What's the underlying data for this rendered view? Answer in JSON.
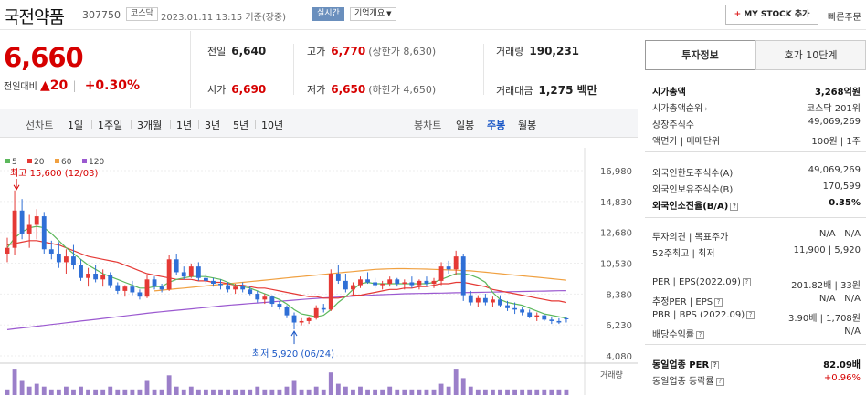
{
  "header": {
    "name": "국전약품",
    "code": "307750",
    "market": "코스닥",
    "datetime": "2023.01.11 13:15 기준(장중)",
    "realtime": "실시간",
    "corp_overview": "기업개요",
    "corp_overview_icon": "chevron-down-icon",
    "mystock_plus": "+",
    "mystock_label": "MY STOCK 추가",
    "quick_order": "빠른주문"
  },
  "price": {
    "current": "6,660",
    "diff_label": "전일대비",
    "diff_arrow": "▲",
    "diff_value": "20",
    "sep": "|",
    "diff_pct": "+0.30%",
    "color_up": "#d60000"
  },
  "stats": {
    "prev_close": {
      "label": "전일",
      "value": "6,640"
    },
    "open": {
      "label": "시가",
      "value": "6,690"
    },
    "high": {
      "label": "고가",
      "value": "6,770",
      "sub": "(상한가 8,630)"
    },
    "low": {
      "label": "저가",
      "value": "6,650",
      "sub": "(하한가 4,650)"
    },
    "volume": {
      "label": "거래량",
      "value": "190,231"
    },
    "amount": {
      "label": "거래대금",
      "value": "1,275 백만"
    }
  },
  "toolbar": {
    "line_chart": "선차트",
    "line_periods": [
      "1일",
      "1주일",
      "3개월",
      "1년",
      "3년",
      "5년",
      "10년"
    ],
    "candle_chart": "봉차트",
    "candle_periods": [
      "일봉",
      "주봉",
      "월봉"
    ],
    "active_candle": "주봉"
  },
  "chart_data": {
    "type": "candlestick",
    "legend": [
      {
        "name": "5",
        "color": "#5cb85c"
      },
      {
        "name": "20",
        "color": "#e53935"
      },
      {
        "name": "60",
        "color": "#f0a040"
      },
      {
        "name": "120",
        "color": "#9b59d0"
      }
    ],
    "yticks": [
      16980,
      14830,
      12680,
      10530,
      8380,
      6230,
      4080
    ],
    "ylim": [
      3700,
      17300
    ],
    "annotation_high": "최고 15,600 (12/03)",
    "annotation_low": "최저 5,920 (06/24)",
    "volume_label": "거래량",
    "color_up": "#e53935",
    "color_down": "#2f6fd6",
    "candles": [
      [
        11200,
        12300,
        10600,
        11600
      ],
      [
        11600,
        15600,
        11100,
        14200
      ],
      [
        14200,
        15000,
        12200,
        12600
      ],
      [
        12600,
        13900,
        11600,
        13200
      ],
      [
        13200,
        14300,
        12200,
        13800
      ],
      [
        13800,
        14100,
        11200,
        11500
      ],
      [
        11500,
        12100,
        10800,
        11200
      ],
      [
        11200,
        12000,
        10200,
        10600
      ],
      [
        10600,
        11500,
        9800,
        11000
      ],
      [
        11000,
        11800,
        10100,
        10400
      ],
      [
        10400,
        10800,
        9300,
        9500
      ],
      [
        9500,
        10200,
        8900,
        9800
      ],
      [
        9800,
        10400,
        9200,
        9400
      ],
      [
        9400,
        10100,
        8900,
        9700
      ],
      [
        9700,
        9900,
        8800,
        9000
      ],
      [
        9000,
        9200,
        8400,
        8600
      ],
      [
        8600,
        9000,
        8200,
        8900
      ],
      [
        8900,
        9300,
        8300,
        8500
      ],
      [
        8500,
        8700,
        8000,
        8200
      ],
      [
        8200,
        9700,
        8100,
        9400
      ],
      [
        9400,
        9600,
        8700,
        8900
      ],
      [
        8900,
        9100,
        8500,
        8700
      ],
      [
        8700,
        11100,
        8600,
        10800
      ],
      [
        10800,
        11200,
        9700,
        9900
      ],
      [
        9900,
        10300,
        9400,
        9600
      ],
      [
        9600,
        10500,
        9500,
        10300
      ],
      [
        10300,
        10600,
        9300,
        9500
      ],
      [
        9500,
        9800,
        9100,
        9300
      ],
      [
        9300,
        9500,
        8900,
        9100
      ],
      [
        9100,
        9400,
        8700,
        9000
      ],
      [
        9000,
        9200,
        8500,
        8700
      ],
      [
        8700,
        9100,
        8400,
        8900
      ],
      [
        8900,
        9200,
        8500,
        8700
      ],
      [
        8700,
        8900,
        8300,
        8400
      ],
      [
        8400,
        8600,
        7800,
        8000
      ],
      [
        8000,
        8400,
        7700,
        8200
      ],
      [
        8200,
        8300,
        7500,
        7700
      ],
      [
        7700,
        7900,
        7300,
        7500
      ],
      [
        7500,
        7600,
        6700,
        6900
      ],
      [
        6900,
        7100,
        5920,
        6400
      ],
      [
        6400,
        6700,
        6200,
        6500
      ],
      [
        6500,
        6800,
        6300,
        6700
      ],
      [
        6700,
        7600,
        6600,
        7400
      ],
      [
        7400,
        7700,
        7100,
        7300
      ],
      [
        7300,
        10100,
        7200,
        9800
      ],
      [
        9800,
        10400,
        9100,
        9300
      ],
      [
        9300,
        9800,
        8500,
        8700
      ],
      [
        8700,
        9200,
        8300,
        9000
      ],
      [
        9000,
        9600,
        8800,
        9400
      ],
      [
        9400,
        9900,
        9100,
        9200
      ],
      [
        9200,
        9500,
        8800,
        9000
      ],
      [
        9000,
        9300,
        8700,
        9100
      ],
      [
        9100,
        9600,
        8900,
        9400
      ],
      [
        9400,
        9500,
        8900,
        9100
      ],
      [
        9100,
        9400,
        8700,
        9200
      ],
      [
        9200,
        9600,
        8800,
        9000
      ],
      [
        9000,
        9400,
        8700,
        9300
      ],
      [
        9300,
        9600,
        8900,
        9100
      ],
      [
        9100,
        9500,
        8800,
        9300
      ],
      [
        9300,
        10600,
        9000,
        10300
      ],
      [
        10300,
        10700,
        9800,
        10100
      ],
      [
        10100,
        11400,
        9700,
        11000
      ],
      [
        11000,
        11200,
        7900,
        8300
      ],
      [
        8300,
        8600,
        7600,
        7800
      ],
      [
        7800,
        8300,
        7500,
        8100
      ],
      [
        8100,
        8400,
        7600,
        7800
      ],
      [
        7800,
        8200,
        7500,
        8000
      ],
      [
        8000,
        8300,
        7500,
        7600
      ],
      [
        7600,
        7900,
        7200,
        7400
      ],
      [
        7400,
        7800,
        7000,
        7300
      ],
      [
        7300,
        7500,
        6900,
        7100
      ],
      [
        7100,
        7300,
        6700,
        6800
      ],
      [
        6800,
        7100,
        6500,
        6900
      ],
      [
        6900,
        7000,
        6500,
        6600
      ],
      [
        6600,
        6800,
        6300,
        6500
      ],
      [
        6500,
        6700,
        6300,
        6400
      ],
      [
        6690,
        6770,
        6400,
        6660
      ]
    ],
    "ma5": [
      11600,
      12300,
      12700,
      13000,
      13100,
      13000,
      12600,
      12100,
      11600,
      11200,
      10800,
      10400,
      10100,
      9800,
      9600,
      9400,
      9200,
      9000,
      8800,
      8800,
      8900,
      8900,
      9200,
      9400,
      9500,
      9600,
      9600,
      9600,
      9500,
      9400,
      9200,
      9000,
      8900,
      8800,
      8600,
      8400,
      8200,
      8000,
      7700,
      7300,
      7000,
      6900,
      6800,
      6900,
      7300,
      7800,
      8200,
      8700,
      9100,
      9200,
      9100,
      9100,
      9100,
      9100,
      9100,
      9100,
      9100,
      9100,
      9200,
      9400,
      9600,
      9800,
      9800,
      9700,
      9500,
      9200,
      8500,
      8000,
      7800,
      7700,
      7600,
      7400,
      7200,
      7000,
      6900,
      6800,
      6700
    ],
    "ma20": [
      11800,
      11900,
      12000,
      12100,
      12100,
      12000,
      11900,
      11800,
      11600,
      11400,
      11200,
      11000,
      10900,
      10800,
      10700,
      10600,
      10400,
      10200,
      10000,
      9800,
      9700,
      9600,
      9500,
      9400,
      9400,
      9400,
      9300,
      9300,
      9200,
      9200,
      9100,
      9000,
      9000,
      8900,
      8800,
      8800,
      8700,
      8600,
      8500,
      8400,
      8300,
      8200,
      8200,
      8100,
      8100,
      8100,
      8200,
      8300,
      8300,
      8400,
      8500,
      8600,
      8700,
      8700,
      8800,
      8800,
      8900,
      8900,
      9000,
      9100,
      9100,
      9200,
      9200,
      9100,
      9000,
      8900,
      8700,
      8600,
      8500,
      8400,
      8300,
      8200,
      8100,
      8000,
      7900,
      7900,
      7800
    ],
    "ma60": [
      null,
      null,
      null,
      null,
      null,
      null,
      null,
      null,
      null,
      null,
      null,
      null,
      null,
      null,
      null,
      null,
      null,
      null,
      null,
      null,
      8600,
      8650,
      8700,
      8750,
      8800,
      8850,
      8900,
      8950,
      9000,
      9050,
      9100,
      9150,
      9200,
      9250,
      9300,
      9350,
      9400,
      9450,
      9500,
      9550,
      9600,
      9650,
      9700,
      9750,
      9800,
      9850,
      9900,
      9950,
      10000,
      10050,
      10100,
      10120,
      10140,
      10150,
      10150,
      10140,
      10130,
      10120,
      10100,
      10080,
      10060,
      10040,
      10020,
      10000,
      9950,
      9900,
      9850,
      9800,
      9750,
      9700,
      9650,
      9600,
      9550,
      9500,
      9450,
      9400,
      9350
    ],
    "ma120": [
      5900,
      5960,
      6020,
      6080,
      6140,
      6200,
      6260,
      6320,
      6380,
      6440,
      6500,
      6560,
      6620,
      6680,
      6740,
      6800,
      6860,
      6920,
      6980,
      7040,
      7100,
      7150,
      7200,
      7250,
      7300,
      7350,
      7400,
      7450,
      7500,
      7550,
      7600,
      7640,
      7680,
      7720,
      7760,
      7800,
      7840,
      7880,
      7920,
      7960,
      8000,
      8040,
      8080,
      8110,
      8140,
      8170,
      8200,
      8230,
      8260,
      8290,
      8320,
      8340,
      8360,
      8380,
      8400,
      8410,
      8420,
      8430,
      8440,
      8450,
      8460,
      8470,
      8480,
      8490,
      8500,
      8510,
      8520,
      8530,
      8540,
      8550,
      8560,
      8570,
      8580,
      8590,
      8600,
      8610,
      8620
    ],
    "volume": [
      0.2,
      0.9,
      0.5,
      0.3,
      0.4,
      0.3,
      0.2,
      0.2,
      0.3,
      0.2,
      0.3,
      0.2,
      0.2,
      0.2,
      0.3,
      0.2,
      0.2,
      0.2,
      0.2,
      0.5,
      0.2,
      0.2,
      0.7,
      0.3,
      0.2,
      0.3,
      0.2,
      0.2,
      0.2,
      0.2,
      0.2,
      0.2,
      0.2,
      0.2,
      0.3,
      0.2,
      0.2,
      0.2,
      0.3,
      0.5,
      0.2,
      0.2,
      0.3,
      0.2,
      0.8,
      0.4,
      0.3,
      0.2,
      0.3,
      0.2,
      0.2,
      0.2,
      0.3,
      0.2,
      0.2,
      0.2,
      0.2,
      0.2,
      0.2,
      0.4,
      0.3,
      0.9,
      0.6,
      0.3,
      0.2,
      0.2,
      0.2,
      0.2,
      0.2,
      0.2,
      0.2,
      0.2,
      0.2,
      0.2,
      0.2,
      0.2,
      0.2
    ]
  },
  "side": {
    "tabs": [
      "투자정보",
      "호가 10단계"
    ],
    "rows": [
      {
        "k": "시가총액",
        "v": "3,268억원",
        "bold": true
      },
      {
        "k": "시가총액순위",
        "v": "코스닥 201위",
        "chev": true
      },
      {
        "k": "상장주식수",
        "v": "49,069,269"
      },
      {
        "k": "액면가 | 매매단위",
        "v": "100원 | 1주"
      },
      {
        "k": "외국인한도주식수(A)",
        "v": "49,069,269"
      },
      {
        "k": "외국인보유주식수(B)",
        "v": "170,599"
      },
      {
        "k": "외국인소진율(B/A)",
        "v": "0.35%",
        "bold": true,
        "q": true
      },
      {
        "k": "투자의견 | 목표주가",
        "v": "N/A | N/A"
      },
      {
        "k": "52주최고 | 최저",
        "v": "11,900 | 5,920"
      },
      {
        "k": "PER | EPS(2022.09)",
        "v": "201.82배 | 33원",
        "q": true
      },
      {
        "k": "추정PER | EPS",
        "v": "N/A | N/A",
        "q": true
      },
      {
        "k": "PBR | BPS (2022.09)",
        "v": "3.90배 | 1,708원",
        "q": true
      },
      {
        "k": "배당수익률",
        "v": "N/A",
        "q": true
      },
      {
        "k": "동일업종 PER",
        "v": "82.09배",
        "bold": true,
        "q": true
      },
      {
        "k": "동일업종 등락률",
        "v": "+0.96%",
        "red": true,
        "q": true
      }
    ],
    "q_mark": "?",
    "chev_mark": "›"
  }
}
